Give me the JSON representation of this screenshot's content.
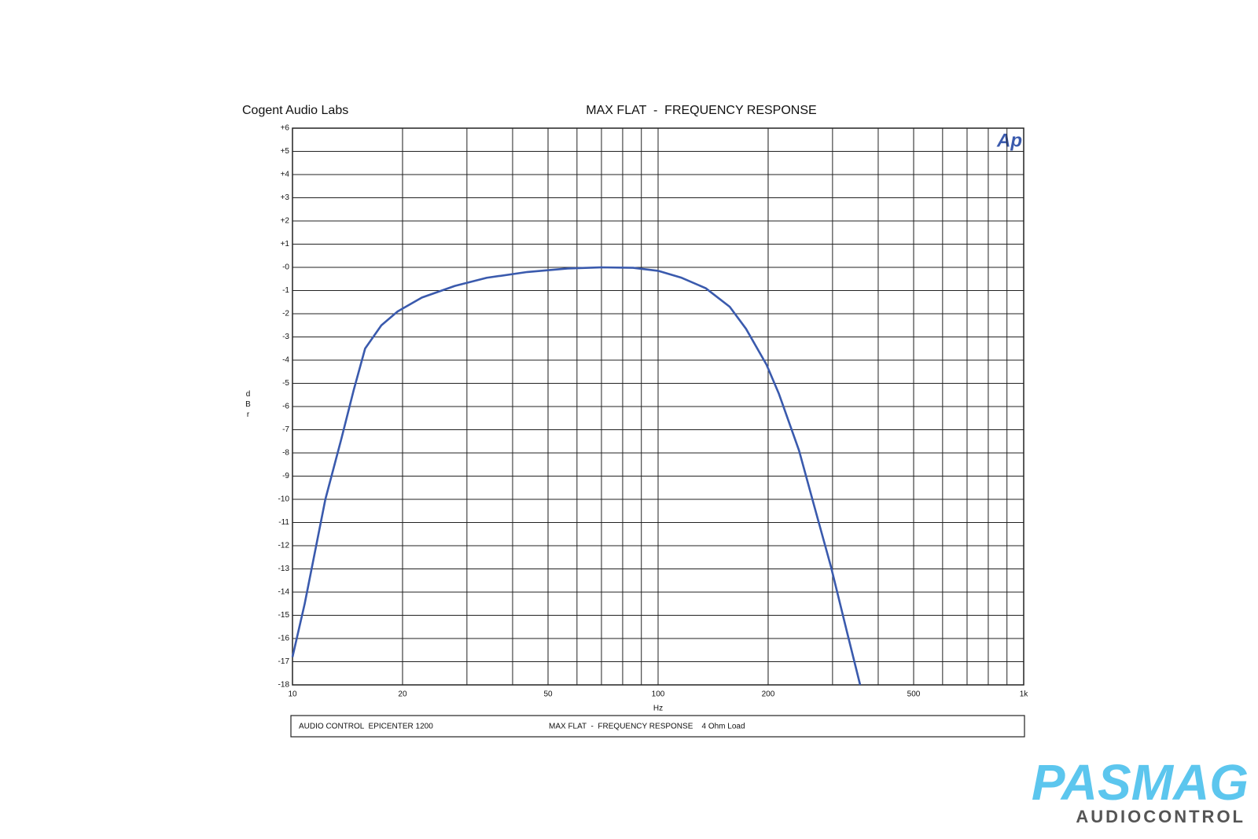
{
  "chart_data": {
    "type": "line",
    "source": "Cogent Audio Labs",
    "title": "MAX FLAT  -  FREQUENCY RESPONSE",
    "logo": "Ap",
    "x_label": "Hz",
    "y_label": "dBr",
    "footer_left": "AUDIO CONTROL  EPICENTER 1200",
    "footer_right": "MAX FLAT  -  FREQUENCY RESPONSE    4 Ohm Load",
    "x_scale": "log",
    "xlim": [
      10,
      1000
    ],
    "xticks": [
      10,
      20,
      50,
      100,
      200,
      500,
      {
        "value": 1000,
        "label": "1k"
      }
    ],
    "ylim": [
      -18,
      6
    ],
    "yticks": [
      {
        "value": 6,
        "label": "+6"
      },
      {
        "value": 5,
        "label": "+5"
      },
      {
        "value": 4,
        "label": "+4"
      },
      {
        "value": 3,
        "label": "+3"
      },
      {
        "value": 2,
        "label": "+2"
      },
      {
        "value": 1,
        "label": "+1"
      },
      {
        "value": 0,
        "label": "-0"
      },
      -1,
      -2,
      -3,
      -4,
      -5,
      -6,
      -7,
      -8,
      -9,
      -10,
      -11,
      -12,
      -13,
      -14,
      -15,
      -16,
      -17,
      -18
    ],
    "grid": true,
    "minor_grid": true,
    "series": [
      {
        "name": "MAX FLAT",
        "color": "#3a5aad",
        "x": [
          10,
          10.8,
          12.3,
          13.6,
          14.7,
          15.8,
          17.5,
          19.4,
          22.6,
          27.8,
          34,
          43.9,
          56.6,
          69.6,
          85.4,
          100,
          116,
          135,
          157,
          174,
          198,
          214,
          243,
          268,
          297,
          329,
          357
        ],
        "values": [
          -16.8,
          -14.5,
          -10,
          -7.4,
          -5.3,
          -3.5,
          -2.5,
          -1.9,
          -1.3,
          -0.8,
          -0.45,
          -0.2,
          -0.05,
          0,
          -0.02,
          -0.15,
          -0.45,
          -0.9,
          -1.7,
          -2.65,
          -4.2,
          -5.45,
          -7.9,
          -10.35,
          -12.9,
          -15.75,
          -18
        ]
      }
    ],
    "watermark": "PASMAG",
    "watermark_sub": "AUDIOCONTROL"
  }
}
